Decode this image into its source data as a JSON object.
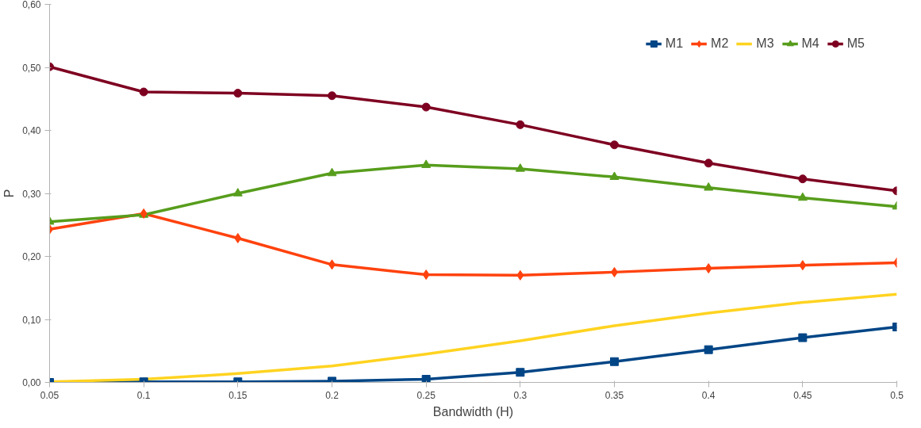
{
  "chart_data": {
    "type": "line",
    "xlabel": "Bandwidth (H)",
    "ylabel": "P",
    "x": [
      0.05,
      0.1,
      0.15,
      0.2,
      0.25,
      0.3,
      0.35,
      0.4,
      0.45,
      0.5
    ],
    "xlim": [
      0.05,
      0.5
    ],
    "xticks": [
      0.05,
      0.1,
      0.15,
      0.2,
      0.25,
      0.3,
      0.35,
      0.4,
      0.45,
      0.5
    ],
    "ylim": [
      0,
      0.6
    ],
    "yticks": [
      {
        "value": 0,
        "label": "0,00"
      },
      {
        "value": 0.1,
        "label": "0,10"
      },
      {
        "value": 0.2,
        "label": "0,20"
      },
      {
        "value": 0.3,
        "label": "0,30"
      },
      {
        "value": 0.4,
        "label": "0,40"
      },
      {
        "value": 0.5,
        "label": "0,50"
      },
      {
        "value": 0.6,
        "label": "0,60"
      }
    ],
    "grid": false,
    "legend": "top right",
    "line_style": "solid",
    "series": [
      {
        "name": "M1",
        "color": "#004586",
        "marker": "square",
        "values": [
          0,
          0.001,
          0.001,
          0.002,
          0.005,
          0.016,
          0.033,
          0.052,
          0.071,
          0.088
        ]
      },
      {
        "name": "M2",
        "color": "#ff420e",
        "marker": "diamond",
        "values": [
          0.243,
          0.268,
          0.229,
          0.187,
          0.171,
          0.17,
          0.175,
          0.181,
          0.186,
          0.19
        ]
      },
      {
        "name": "M3",
        "color": "#ffd320",
        "marker": "none",
        "values": [
          0.001,
          0.005,
          0.014,
          0.026,
          0.045,
          0.066,
          0.09,
          0.11,
          0.127,
          0.14
        ]
      },
      {
        "name": "M4",
        "color": "#579d1c",
        "marker": "triangle",
        "values": [
          0.255,
          0.266,
          0.3,
          0.332,
          0.345,
          0.339,
          0.326,
          0.309,
          0.293,
          0.279
        ]
      },
      {
        "name": "M5",
        "color": "#7e0021",
        "marker": "circle",
        "values": [
          0.501,
          0.461,
          0.459,
          0.455,
          0.437,
          0.409,
          0.377,
          0.348,
          0.323,
          0.304
        ]
      }
    ]
  }
}
